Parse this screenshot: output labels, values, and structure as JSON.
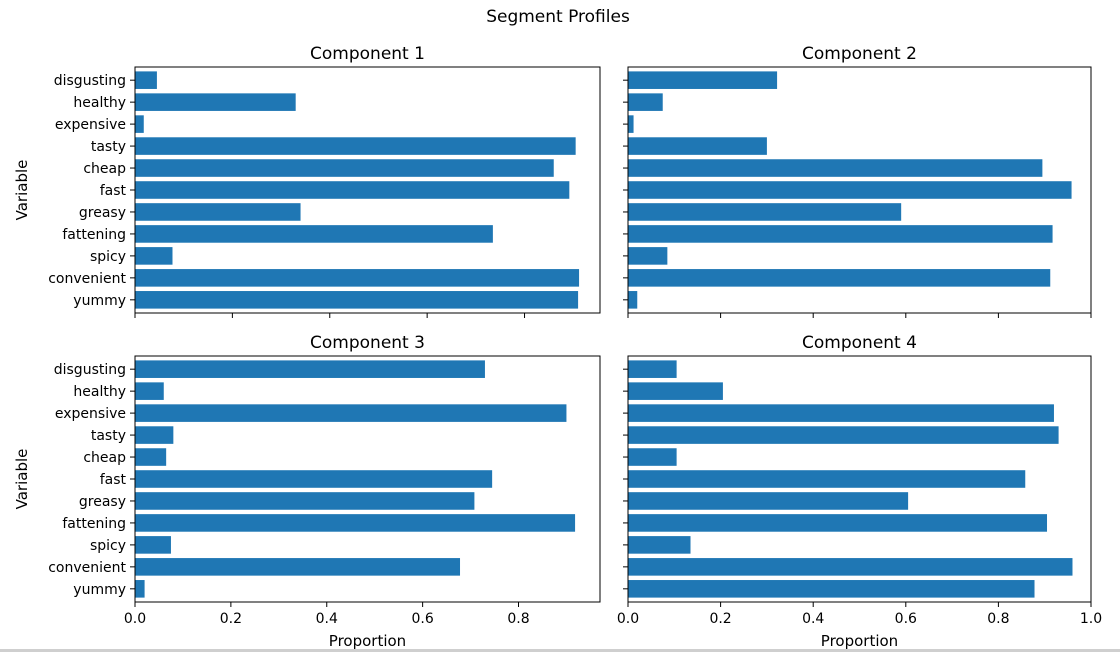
{
  "figure": {
    "title": "Segment Profiles",
    "bar_color": "#1f77b4",
    "background": "#ffffff"
  },
  "chart_data": [
    {
      "type": "bar",
      "orientation": "horizontal",
      "title": "Component 1",
      "ylabel": "Variable",
      "xlabel": "",
      "categories": [
        "disgusting",
        "healthy",
        "expensive",
        "tasty",
        "cheap",
        "fast",
        "greasy",
        "fattening",
        "spicy",
        "convenient",
        "yummy"
      ],
      "values": [
        0.045,
        0.33,
        0.018,
        0.905,
        0.86,
        0.892,
        0.34,
        0.735,
        0.077,
        0.912,
        0.91
      ],
      "xlim": [
        0.0,
        0.955
      ],
      "xticks": [
        0.0,
        0.2,
        0.4,
        0.6,
        0.8
      ],
      "xtick_labels_visible": false,
      "ytick_labels_visible": true,
      "grid": false
    },
    {
      "type": "bar",
      "orientation": "horizontal",
      "title": "Component 2",
      "ylabel": "",
      "xlabel": "",
      "categories": [
        "disgusting",
        "healthy",
        "expensive",
        "tasty",
        "cheap",
        "fast",
        "greasy",
        "fattening",
        "spicy",
        "convenient",
        "yummy"
      ],
      "values": [
        0.322,
        0.075,
        0.012,
        0.3,
        0.895,
        0.958,
        0.59,
        0.917,
        0.085,
        0.912,
        0.02
      ],
      "xlim": [
        0.0,
        1.0
      ],
      "xticks": [
        0.0,
        0.2,
        0.4,
        0.6,
        0.8,
        1.0
      ],
      "xtick_labels_visible": false,
      "ytick_labels_visible": false,
      "grid": false
    },
    {
      "type": "bar",
      "orientation": "horizontal",
      "title": "Component 3",
      "ylabel": "Variable",
      "xlabel": "Proportion",
      "categories": [
        "disgusting",
        "healthy",
        "expensive",
        "tasty",
        "cheap",
        "fast",
        "greasy",
        "fattening",
        "spicy",
        "convenient",
        "yummy"
      ],
      "values": [
        0.73,
        0.06,
        0.9,
        0.08,
        0.065,
        0.745,
        0.708,
        0.918,
        0.075,
        0.678,
        0.02
      ],
      "xlim": [
        0.0,
        0.97
      ],
      "xticks": [
        0.0,
        0.2,
        0.4,
        0.6,
        0.8
      ],
      "xtick_labels": [
        "0.0",
        "0.2",
        "0.4",
        "0.6",
        "0.8"
      ],
      "xtick_labels_visible": true,
      "ytick_labels_visible": true,
      "grid": false
    },
    {
      "type": "bar",
      "orientation": "horizontal",
      "title": "Component 4",
      "ylabel": "",
      "xlabel": "Proportion",
      "categories": [
        "disgusting",
        "healthy",
        "expensive",
        "tasty",
        "cheap",
        "fast",
        "greasy",
        "fattening",
        "spicy",
        "convenient",
        "yummy"
      ],
      "values": [
        0.105,
        0.205,
        0.92,
        0.93,
        0.105,
        0.858,
        0.605,
        0.905,
        0.135,
        0.96,
        0.878
      ],
      "xlim": [
        0.0,
        1.0
      ],
      "xticks": [
        0.0,
        0.2,
        0.4,
        0.6,
        0.8,
        1.0
      ],
      "xtick_labels": [
        "0.0",
        "0.2",
        "0.4",
        "0.6",
        "0.8",
        "1.0"
      ],
      "xtick_labels_visible": true,
      "ytick_labels_visible": false,
      "grid": false
    }
  ]
}
